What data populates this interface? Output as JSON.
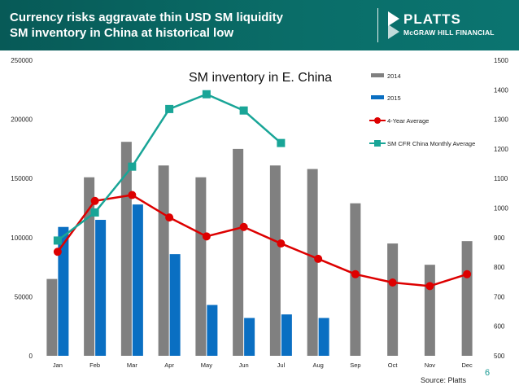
{
  "header": {
    "title_line1": "Currency risks aggravate thin USD SM liquidity",
    "title_line2": "SM inventory in China at historical low",
    "logo_name": "PLATTS",
    "logo_sub": "McGRAW HILL FINANCIAL"
  },
  "page_number": "6",
  "source": "Source: Platts",
  "colors": {
    "header_bg": "#0a6e69",
    "bar_2014": "#808080",
    "bar_2015": "#0a6fc2",
    "avg_line": "#dd0000",
    "sm_cfr_line": "#19a597"
  },
  "chart_data": {
    "type": "bar",
    "title": "SM inventory in E. China",
    "categories": [
      "Jan",
      "Feb",
      "Mar",
      "Apr",
      "May",
      "Jun",
      "Jul",
      "Aug",
      "Sep",
      "Oct",
      "Nov",
      "Dec"
    ],
    "series": [
      {
        "name": "2014",
        "type": "bar",
        "axis": "left",
        "values": [
          65000,
          151000,
          181000,
          161000,
          151000,
          175000,
          161000,
          158000,
          129000,
          95000,
          77000,
          97000
        ]
      },
      {
        "name": "2015",
        "type": "bar",
        "axis": "left",
        "values": [
          109000,
          115000,
          128000,
          86000,
          43000,
          32000,
          35000,
          32000,
          null,
          null,
          null,
          null
        ]
      },
      {
        "name": "4-Year Average",
        "type": "line",
        "axis": "left",
        "values": [
          88000,
          131000,
          136000,
          117000,
          101000,
          109000,
          95000,
          82000,
          69000,
          62000,
          59000,
          69000
        ]
      },
      {
        "name": "SM CFR China Monthly Average",
        "type": "line",
        "axis": "right",
        "values": [
          890,
          985,
          1140,
          1335,
          1385,
          1330,
          1220,
          null,
          null,
          null,
          null,
          null
        ]
      }
    ],
    "y_left": {
      "ylim": [
        0,
        250000
      ],
      "ticks": [
        0,
        50000,
        100000,
        150000,
        200000,
        250000
      ],
      "tick_labels": [
        "0",
        "50000",
        "100000",
        "150000",
        "200000",
        "250000"
      ]
    },
    "y_right": {
      "ylim": [
        500,
        1500
      ],
      "ticks": [
        500,
        600,
        700,
        800,
        900,
        1000,
        1100,
        1200,
        1300,
        1400,
        1500
      ],
      "tick_labels": [
        "500",
        "600",
        "700",
        "800",
        "900",
        "1000",
        "1100",
        "1200",
        "1300",
        "1400",
        "1500"
      ]
    },
    "grid": false,
    "legend_position": "top-right"
  }
}
